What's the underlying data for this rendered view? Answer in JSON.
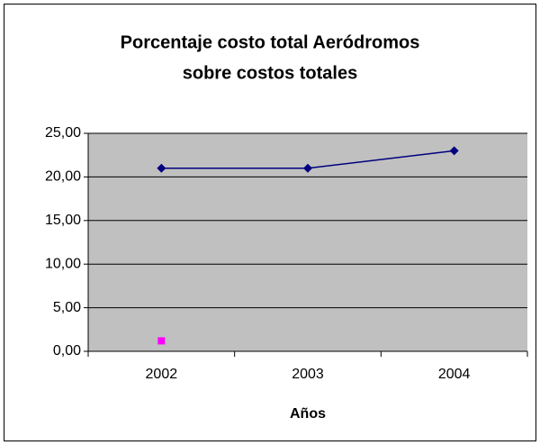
{
  "chart_data": {
    "type": "line",
    "title": [
      "Porcentaje costo total Aeródromos",
      "sobre costos totales"
    ],
    "x_label": "Años",
    "categories": [
      "2002",
      "2003",
      "2004"
    ],
    "series": [
      {
        "color": "#000080",
        "marker": "diamond",
        "values": [
          21.0,
          21.0,
          23.0
        ]
      },
      {
        "color": "#ff00ff",
        "marker": "square",
        "values": [
          1.2,
          null,
          null
        ]
      }
    ],
    "ylim": [
      0,
      25
    ],
    "yticks": [
      {
        "value": 0,
        "label": "0,00"
      },
      {
        "value": 5,
        "label": "5,00"
      },
      {
        "value": 10,
        "label": "10,00"
      },
      {
        "value": 15,
        "label": "15,00"
      },
      {
        "value": 20,
        "label": "20,00"
      },
      {
        "value": 25,
        "label": "25,00"
      }
    ],
    "grid": true
  }
}
